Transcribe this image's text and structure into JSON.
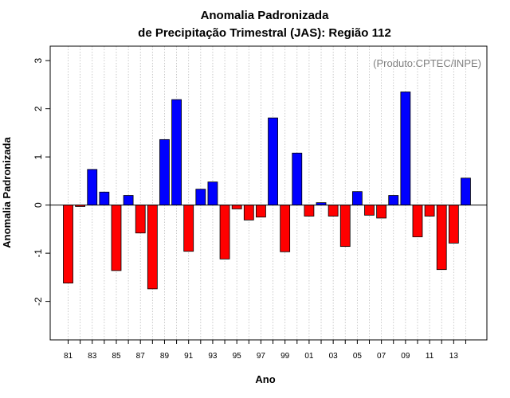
{
  "chart_data": {
    "type": "bar",
    "title": [
      "Anomalia Padronizada",
      "de Precipitação Trimestral (JAS): Região 112"
    ],
    "xlabel": "Ano",
    "ylabel": "Anomalia Padronizada",
    "annotation": "(Produto:CPTEC/INPE)",
    "ylim": [
      -2.8,
      3.3
    ],
    "yticks": [
      -2,
      -1,
      0,
      1,
      2,
      3
    ],
    "grid": "vertical dotted",
    "colors": {
      "positive": "#0000ff",
      "negative": "#ff0000"
    },
    "x_tick_labels": [
      {
        "year": 1981,
        "label": "81"
      },
      {
        "year": 1983,
        "label": "83"
      },
      {
        "year": 1985,
        "label": "85"
      },
      {
        "year": 1987,
        "label": "87"
      },
      {
        "year": 1989,
        "label": "89"
      },
      {
        "year": 1991,
        "label": "91"
      },
      {
        "year": 1993,
        "label": "93"
      },
      {
        "year": 1995,
        "label": "95"
      },
      {
        "year": 1997,
        "label": "97"
      },
      {
        "year": 1999,
        "label": "99"
      },
      {
        "year": 2001,
        "label": "01"
      },
      {
        "year": 2003,
        "label": "03"
      },
      {
        "year": 2005,
        "label": "05"
      },
      {
        "year": 2007,
        "label": "07"
      },
      {
        "year": 2009,
        "label": "09"
      },
      {
        "year": 2011,
        "label": "11"
      },
      {
        "year": 2013,
        "label": "13"
      }
    ],
    "categories": [
      1981,
      1982,
      1983,
      1984,
      1985,
      1986,
      1987,
      1988,
      1989,
      1990,
      1991,
      1992,
      1993,
      1994,
      1995,
      1996,
      1997,
      1998,
      1999,
      2000,
      2001,
      2002,
      2003,
      2004,
      2005,
      2006,
      2007,
      2008,
      2009,
      2010,
      2011,
      2012,
      2013,
      2014
    ],
    "values": [
      -1.62,
      -0.03,
      0.74,
      0.27,
      -1.36,
      0.2,
      -0.58,
      -1.74,
      1.36,
      2.19,
      -0.96,
      0.33,
      0.48,
      -1.12,
      -0.08,
      -0.31,
      -0.25,
      1.81,
      -0.97,
      1.08,
      -0.23,
      0.05,
      -0.23,
      -0.86,
      0.28,
      -0.21,
      -0.27,
      0.2,
      2.35,
      -0.66,
      -0.23,
      -1.34,
      -0.79,
      0.56
    ]
  }
}
